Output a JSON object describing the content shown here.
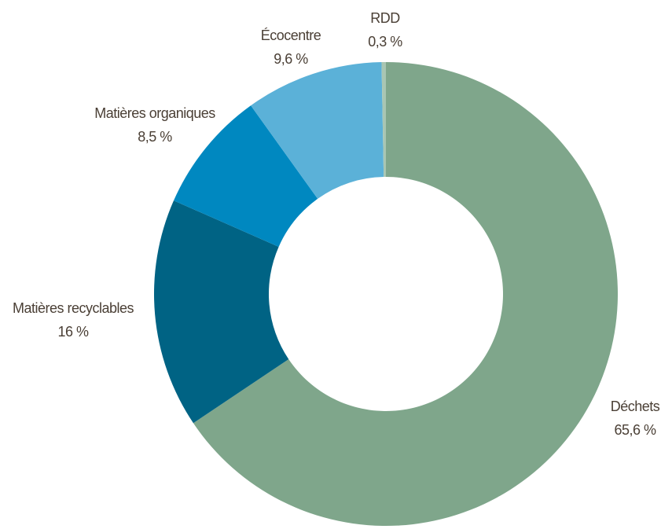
{
  "chart_data": {
    "type": "donut",
    "categories": [
      "Déchets",
      "Matières recyclables",
      "Matières organiques",
      "Écocentre",
      "RDD"
    ],
    "values": [
      65.6,
      16,
      8.5,
      9.6,
      0.3
    ],
    "value_labels": [
      "65,6 %",
      "16 %",
      "8,5 %",
      "9,6 %",
      "0,3 %"
    ],
    "colors": [
      "#7fa68b",
      "#006384",
      "#0088c0",
      "#5bb1d8",
      "#a9c6b3"
    ]
  }
}
